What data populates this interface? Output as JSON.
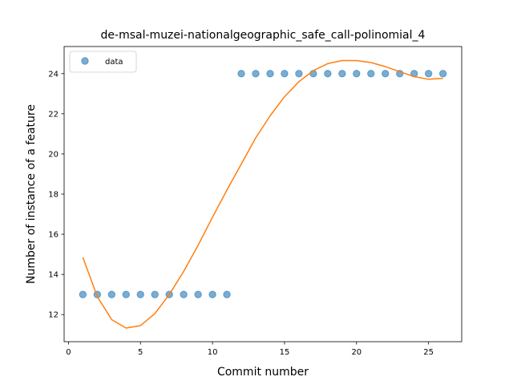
{
  "chart_data": {
    "type": "scatter",
    "title": "de-msal-muzei-nationalgeographic_safe_call-polinomial_4",
    "xlabel": "Commit number",
    "ylabel": "Number of instance of a feature",
    "xlim": [
      -0.3,
      27.3
    ],
    "ylim": [
      10.65,
      25.35
    ],
    "xticks": [
      0,
      5,
      10,
      15,
      20,
      25
    ],
    "yticks": [
      12,
      14,
      16,
      18,
      20,
      22,
      24
    ],
    "grid": false,
    "legend": {
      "position": "top-left",
      "entries": [
        "data"
      ]
    },
    "series": [
      {
        "name": "data",
        "kind": "points",
        "color": "#1f77b4",
        "x": [
          1,
          2,
          3,
          4,
          5,
          6,
          7,
          8,
          9,
          10,
          11,
          12,
          13,
          14,
          15,
          16,
          17,
          18,
          19,
          20,
          21,
          22,
          23,
          24,
          25,
          26
        ],
        "y": [
          13,
          13,
          13,
          13,
          13,
          13,
          13,
          13,
          13,
          13,
          13,
          24,
          24,
          24,
          24,
          24,
          24,
          24,
          24,
          24,
          24,
          24,
          24,
          24,
          24,
          24
        ]
      },
      {
        "kind": "line",
        "color": "#ff7f0e",
        "x": [
          1,
          2,
          3,
          4,
          5,
          6,
          7,
          8,
          9,
          10,
          11,
          12,
          13,
          14,
          15,
          16,
          17,
          18,
          19,
          20,
          21,
          22,
          23,
          24,
          25,
          26
        ],
        "y": [
          14.85,
          12.9,
          11.75,
          11.33,
          11.45,
          12.05,
          13.0,
          14.15,
          15.45,
          16.85,
          18.2,
          19.5,
          20.8,
          21.9,
          22.85,
          23.6,
          24.15,
          24.5,
          24.65,
          24.65,
          24.55,
          24.35,
          24.1,
          23.85,
          23.72,
          23.76
        ]
      }
    ]
  }
}
